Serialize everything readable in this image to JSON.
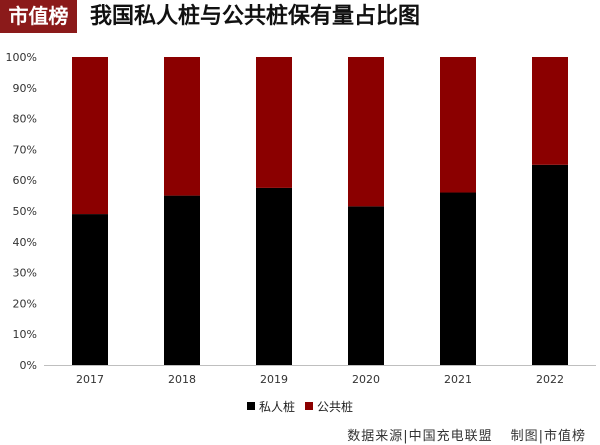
{
  "brand": {
    "label": "市值榜"
  },
  "footer": {
    "source": "数据来源|中国充电联盟",
    "credit": "制图|市值榜"
  },
  "colors": {
    "private": "#000000",
    "public": "#8b0000"
  },
  "chart_data": {
    "type": "bar",
    "stacked": true,
    "title": "我国私人桩与公共桩保有量占比图",
    "categories": [
      "2017",
      "2018",
      "2019",
      "2020",
      "2021",
      "2022"
    ],
    "series": [
      {
        "name": "私人桩",
        "values": [
          49,
          55,
          57.5,
          51.5,
          56,
          65
        ]
      },
      {
        "name": "公共桩",
        "values": [
          51,
          45,
          42.5,
          48.5,
          44,
          35
        ]
      }
    ],
    "ylim": [
      0,
      100
    ],
    "yticks": [
      "0%",
      "10%",
      "20%",
      "30%",
      "40%",
      "50%",
      "60%",
      "70%",
      "80%",
      "90%",
      "100%"
    ],
    "ytick_values": [
      0,
      10,
      20,
      30,
      40,
      50,
      60,
      70,
      80,
      90,
      100
    ],
    "unit": "%",
    "grid": false,
    "legend_position": "bottom",
    "xlabel": "",
    "ylabel": ""
  }
}
